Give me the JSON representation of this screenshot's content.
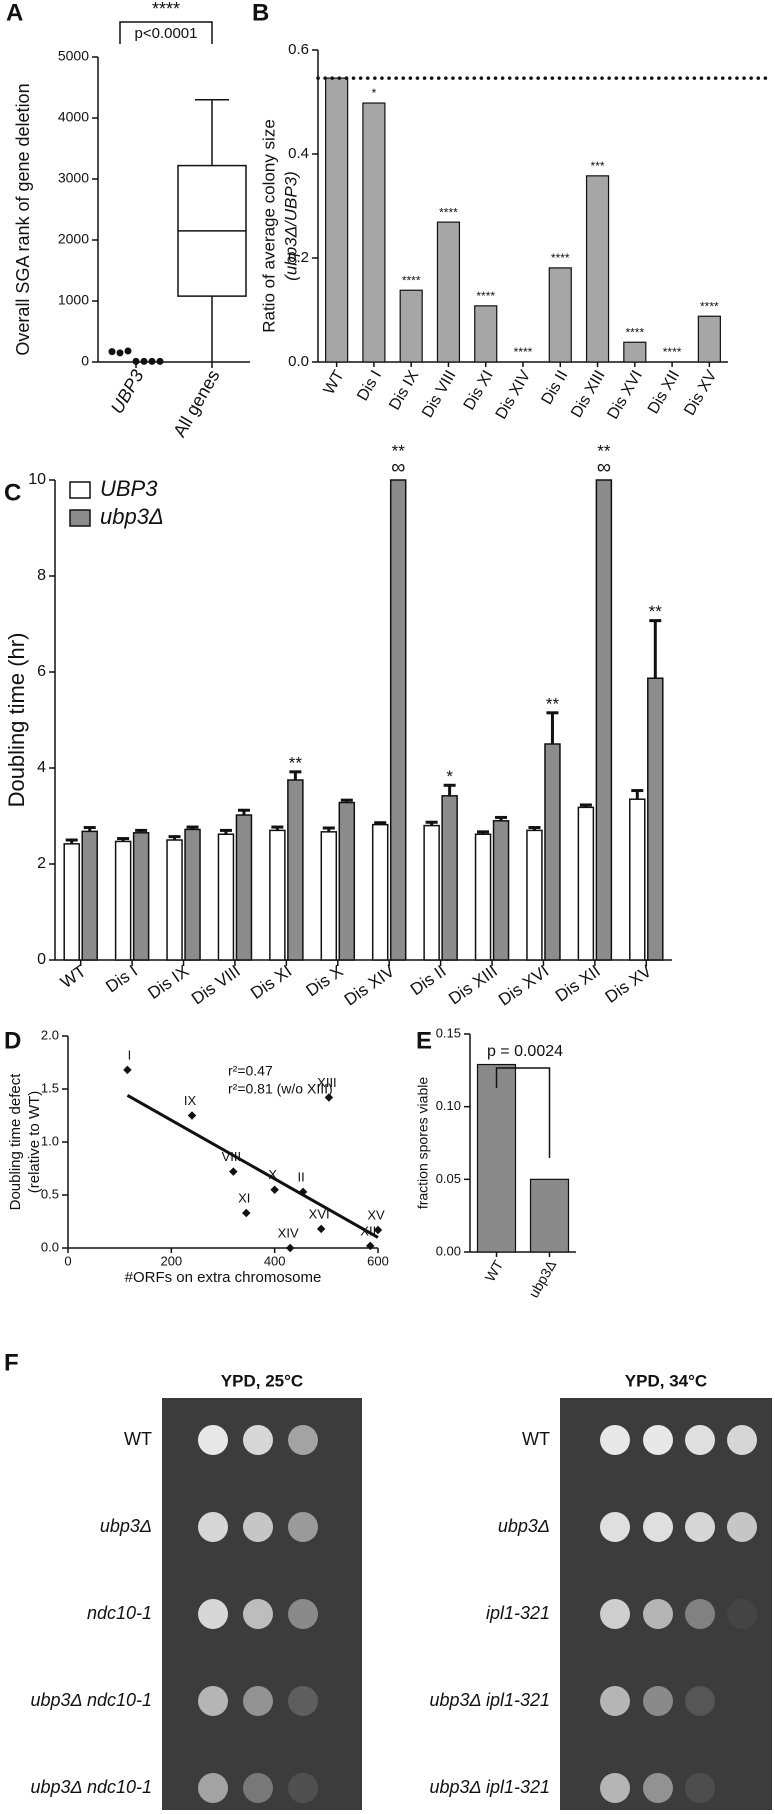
{
  "chart_data": [
    {
      "type": "box",
      "panel_label": "A",
      "ylabel": "Overall SGA rank of gene deletion",
      "categories": [
        "UBP3",
        "All genes"
      ],
      "ylim": [
        0,
        5000
      ],
      "yticks": [
        0,
        1000,
        2000,
        3000,
        4000,
        5000
      ],
      "points": {
        "category": 0,
        "values": [
          170,
          150,
          180,
          10,
          10,
          10,
          10
        ]
      },
      "box": {
        "category": 1,
        "min": 0,
        "q1": 1080,
        "median": 2150,
        "q3": 3220,
        "max": 4300
      },
      "annotations": [
        "****",
        "p<0.0001"
      ]
    },
    {
      "type": "bar",
      "panel_label": "B",
      "ylabel": [
        "Ratio of average colony size",
        "(ubp3Δ/UBP3)"
      ],
      "categories": [
        "WT",
        "Dis I",
        "Dis IX",
        "Dis VIII",
        "Dis XI",
        "Dis XIV",
        "Dis II",
        "Dis XIII",
        "Dis XVI",
        "Dis XII",
        "Dis XV"
      ],
      "values": [
        0.546,
        0.498,
        0.138,
        0.269,
        0.108,
        0,
        0.181,
        0.358,
        0.038,
        0,
        0.088
      ],
      "annotations": [
        null,
        "*",
        "****",
        "****",
        "****",
        "****",
        "****",
        "***",
        "****",
        "****",
        "****"
      ],
      "color": "#a6a6a6",
      "ylim": [
        0,
        0.6
      ],
      "yticks": [
        {
          "value": 0,
          "label": "0.0"
        },
        {
          "value": 0.2,
          "label": "0.2"
        },
        {
          "value": 0.4,
          "label": "0.4"
        },
        {
          "value": 0.6,
          "label": "0.6"
        }
      ],
      "reference_line": 0.546
    },
    {
      "type": "grouped_bar",
      "panel_label": "C",
      "ylabel": "Doubling time (hr)",
      "categories": [
        "WT",
        "Dis I",
        "Dis IX",
        "Dis VIII",
        "Dis XI",
        "Dis X",
        "Dis XIV",
        "Dis II",
        "Dis XIII",
        "Dis XVI",
        "Dis XII",
        "Dis XV"
      ],
      "ylim": [
        0,
        10
      ],
      "yticks": [
        0,
        2,
        4,
        6,
        8,
        10
      ],
      "legend": "top-left",
      "series": [
        {
          "name": "UBP3",
          "color": "#ffffff",
          "values": [
            2.42,
            2.47,
            2.5,
            2.62,
            2.7,
            2.67,
            2.82,
            2.8,
            2.62,
            2.7,
            3.18,
            3.35
          ],
          "errors": [
            0.08,
            0.06,
            0.07,
            0.08,
            0.07,
            0.08,
            0.04,
            0.07,
            0.05,
            0.06,
            0.05,
            0.18
          ]
        },
        {
          "name": "ubp3Δ",
          "color": "#8c8c8c",
          "values": [
            2.68,
            2.65,
            2.72,
            3.02,
            3.75,
            3.28,
            10,
            3.42,
            2.9,
            4.5,
            10,
            5.87
          ],
          "errors": [
            0.08,
            0.05,
            0.05,
            0.1,
            0.17,
            0.05,
            null,
            0.22,
            0.07,
            0.65,
            null,
            1.2
          ],
          "annotations": [
            null,
            null,
            null,
            null,
            "**",
            null,
            "**",
            "*",
            null,
            "**",
            "**",
            "**"
          ],
          "infinite_labels": [
            null,
            null,
            null,
            null,
            null,
            null,
            "∞",
            null,
            null,
            null,
            "∞",
            null
          ]
        }
      ]
    },
    {
      "type": "scatter",
      "panel_label": "D",
      "xlabel": "#ORFs on extra chromosome",
      "ylabel": [
        "Doubling time defect",
        "(relative to WT)"
      ],
      "x": [
        115,
        240,
        320,
        345,
        400,
        455,
        505,
        490,
        430,
        585,
        600
      ],
      "y": [
        1.68,
        1.25,
        0.72,
        0.33,
        0.55,
        0.53,
        1.42,
        0.18,
        0.0,
        0.02,
        0.17
      ],
      "point_labels": [
        "I",
        "IX",
        "VIII",
        "XI",
        "X",
        "II",
        "XIII",
        "XVI",
        "XIV",
        "XII",
        "XV"
      ],
      "fit_line": {
        "x": [
          115,
          600
        ],
        "y": [
          1.44,
          0.1
        ]
      },
      "annotations": [
        "r²=0.47",
        "r²=0.81 (w/o XIII)"
      ],
      "xlim": [
        0,
        600
      ],
      "xticks": [
        0,
        200,
        400,
        600
      ],
      "ylim": [
        0,
        2
      ],
      "yticks": [
        {
          "value": 0,
          "label": "0.0"
        },
        {
          "value": 0.5,
          "label": "0.5"
        },
        {
          "value": 1,
          "label": "1.0"
        },
        {
          "value": 1.5,
          "label": "1.5"
        },
        {
          "value": 2,
          "label": "2.0"
        }
      ]
    },
    {
      "type": "bar",
      "panel_label": "E",
      "ylabel": "fraction spores viable",
      "categories": [
        "WT",
        "ubp3Δ"
      ],
      "values": [
        0.129,
        0.05
      ],
      "color": "#8a8a8a",
      "ylim": [
        0,
        0.15
      ],
      "yticks": [
        {
          "value": 0,
          "label": "0.00"
        },
        {
          "value": 0.05,
          "label": "0.05"
        },
        {
          "value": 0.1,
          "label": "0.10"
        },
        {
          "value": 0.15,
          "label": "0.15"
        }
      ],
      "annotations": [
        "p = 0.0024"
      ]
    }
  ],
  "panel_f": {
    "panel_label": "F",
    "plates": [
      {
        "title": "YPD, 25°C",
        "rows": [
          "WT",
          "ubp3Δ",
          "ndc10-1",
          "ubp3Δ ndc10-1",
          "ubp3Δ ndc10-1"
        ]
      },
      {
        "title": "YPD, 34°C",
        "rows": [
          "WT",
          "ubp3Δ",
          "ipl1-321",
          "ubp3Δ ipl1-321",
          "ubp3Δ ipl1-321"
        ]
      }
    ]
  }
}
